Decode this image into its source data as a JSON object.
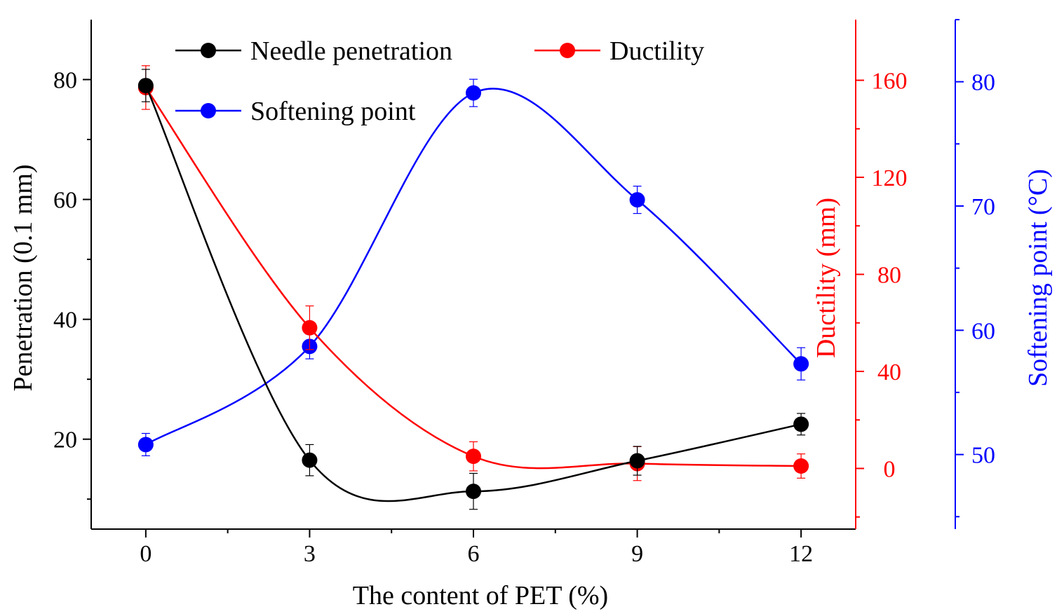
{
  "chart_data": {
    "type": "line",
    "title": "",
    "xlabel": "The content of PET (%)",
    "x": [
      0,
      3,
      6,
      9,
      12
    ],
    "xlim": [
      -1,
      13
    ],
    "xticks": [
      "0",
      "3",
      "6",
      "9",
      "12"
    ],
    "axes": {
      "left": {
        "label": "Penetration (0.1 mm)",
        "ylim": [
          5,
          90
        ],
        "ticks": [
          20,
          40,
          60,
          80
        ],
        "color": "#000000"
      },
      "right1": {
        "label": "Ductility (mm)",
        "ylim": [
          -25,
          185
        ],
        "ticks": [
          0,
          40,
          80,
          120,
          160
        ],
        "color": "#ff0000"
      },
      "right2": {
        "label": "Softening point (°C)",
        "ylim": [
          44,
          85
        ],
        "ticks": [
          50,
          60,
          70,
          80
        ],
        "color": "#0000ff"
      }
    },
    "series": [
      {
        "name": "Needle penetration",
        "axis": "left",
        "color": "#000000",
        "values": [
          79,
          16.5,
          11.3,
          16.4,
          22.5
        ],
        "errors": [
          2.7,
          2.6,
          3.0,
          2.4,
          1.8
        ]
      },
      {
        "name": "Ductility",
        "axis": "right1",
        "color": "#ff0000",
        "values": [
          157,
          58,
          5,
          2,
          1
        ],
        "errors": [
          9,
          9,
          6,
          7,
          5
        ]
      },
      {
        "name": "Softening point",
        "axis": "right2",
        "color": "#0000ff",
        "values": [
          50.8,
          58.7,
          79.1,
          70.5,
          57.3
        ],
        "errors": [
          0.9,
          1.0,
          1.1,
          1.1,
          1.3
        ]
      }
    ],
    "legend_position": "top",
    "grid": false
  }
}
